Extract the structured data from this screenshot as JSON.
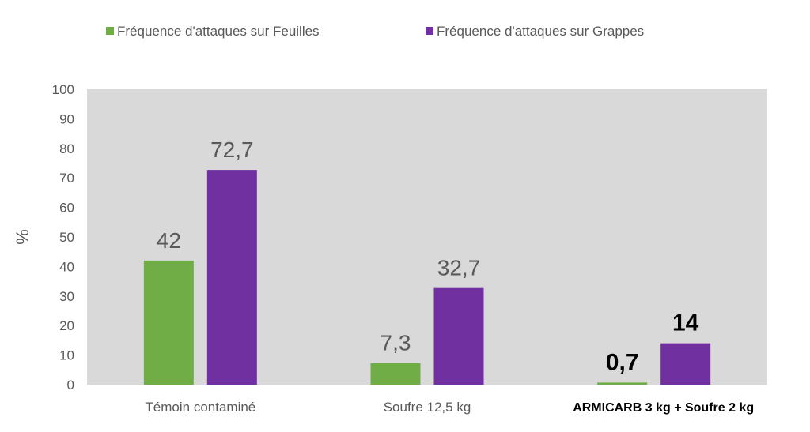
{
  "chart_data": {
    "type": "bar",
    "categories": [
      "Témoin contaminé",
      "Soufre 12,5 kg",
      "ARMICARB 3 kg + Soufre 2 kg"
    ],
    "category_bold": [
      false,
      false,
      true
    ],
    "series": [
      {
        "name": "Fréquence d'attaques sur Feuilles",
        "color": "#70ad47",
        "values": [
          42,
          7.3,
          0.7
        ],
        "labels": [
          "42",
          "7,3",
          "0,7"
        ]
      },
      {
        "name": "Fréquence d'attaques sur Grappes",
        "color": "#7030a0",
        "values": [
          72.7,
          32.7,
          14
        ],
        "labels": [
          "72,7",
          "32,7",
          "14"
        ]
      }
    ],
    "ylabel": "%",
    "ylim": [
      0,
      100
    ],
    "yticks": [
      0,
      10,
      20,
      30,
      40,
      50,
      60,
      70,
      80,
      90,
      100
    ],
    "plot_background": "#d9d9d9",
    "legend_position": "top"
  }
}
